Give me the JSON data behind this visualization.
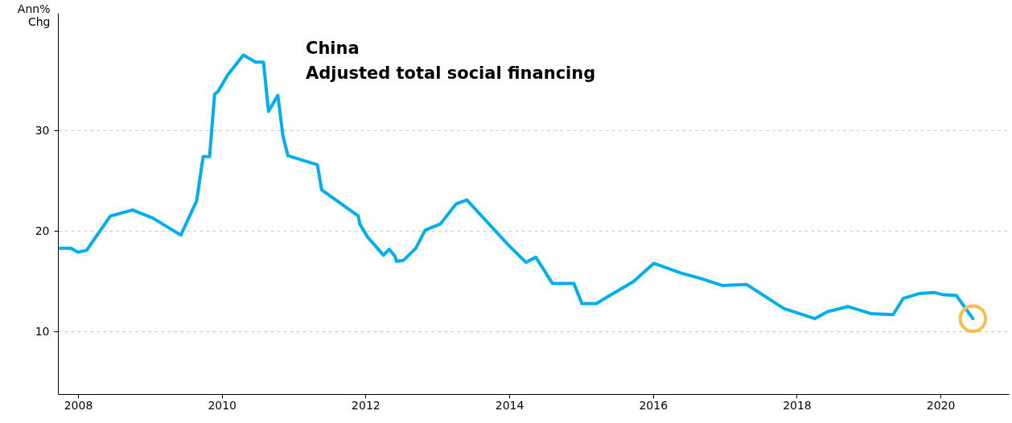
{
  "chart_data": {
    "type": "line",
    "title": "China",
    "subtitle": "Adjusted total social financing",
    "ylabel": "Ann%\nChg",
    "xlim": [
      2007.72,
      2020.95
    ],
    "xticks": [
      2008,
      2010,
      2012,
      2014,
      2016,
      2018,
      2020
    ],
    "ylim": [
      3.8,
      41.7
    ],
    "yticks": [
      10,
      20,
      30
    ],
    "grid": "y",
    "series": [
      {
        "color": "#00aeef",
        "line_style": "solid",
        "x": [
          2007.75,
          2007.9,
          2008.0,
          2008.12,
          2008.45,
          2008.76,
          2009.04,
          2009.43,
          2009.65,
          2009.74,
          2009.83,
          2009.9,
          2009.95,
          2010.08,
          2010.3,
          2010.47,
          2010.58,
          2010.65,
          2010.78,
          2010.85,
          2010.92,
          2011.33,
          2011.39,
          2011.9,
          2011.92,
          2012.03,
          2012.25,
          2012.33,
          2012.41,
          2012.43,
          2012.53,
          2012.7,
          2012.83,
          2013.04,
          2013.26,
          2013.41,
          2013.99,
          2014.23,
          2014.37,
          2014.6,
          2014.9,
          2015.01,
          2015.21,
          2015.73,
          2016.01,
          2016.4,
          2016.66,
          2016.96,
          2017.3,
          2017.82,
          2018.25,
          2018.43,
          2018.71,
          2019.03,
          2019.34,
          2019.48,
          2019.71,
          2019.91,
          2020.02,
          2020.22,
          2020.45
        ],
        "values": [
          18.3,
          18.3,
          17.9,
          18.1,
          21.5,
          22.1,
          21.3,
          19.6,
          23.0,
          27.4,
          27.4,
          33.6,
          33.9,
          35.5,
          37.5,
          36.8,
          36.8,
          31.9,
          33.5,
          29.5,
          27.5,
          26.6,
          24.1,
          21.5,
          20.7,
          19.4,
          17.6,
          18.2,
          17.5,
          17.0,
          17.1,
          18.3,
          20.1,
          20.7,
          22.7,
          23.1,
          18.6,
          16.9,
          17.4,
          14.8,
          14.8,
          12.8,
          12.8,
          15.0,
          16.8,
          15.8,
          15.3,
          14.6,
          14.7,
          12.3,
          11.3,
          12.0,
          12.5,
          11.8,
          11.7,
          13.3,
          13.8,
          13.9,
          13.7,
          13.6,
          11.3
        ]
      }
    ]
  }
}
